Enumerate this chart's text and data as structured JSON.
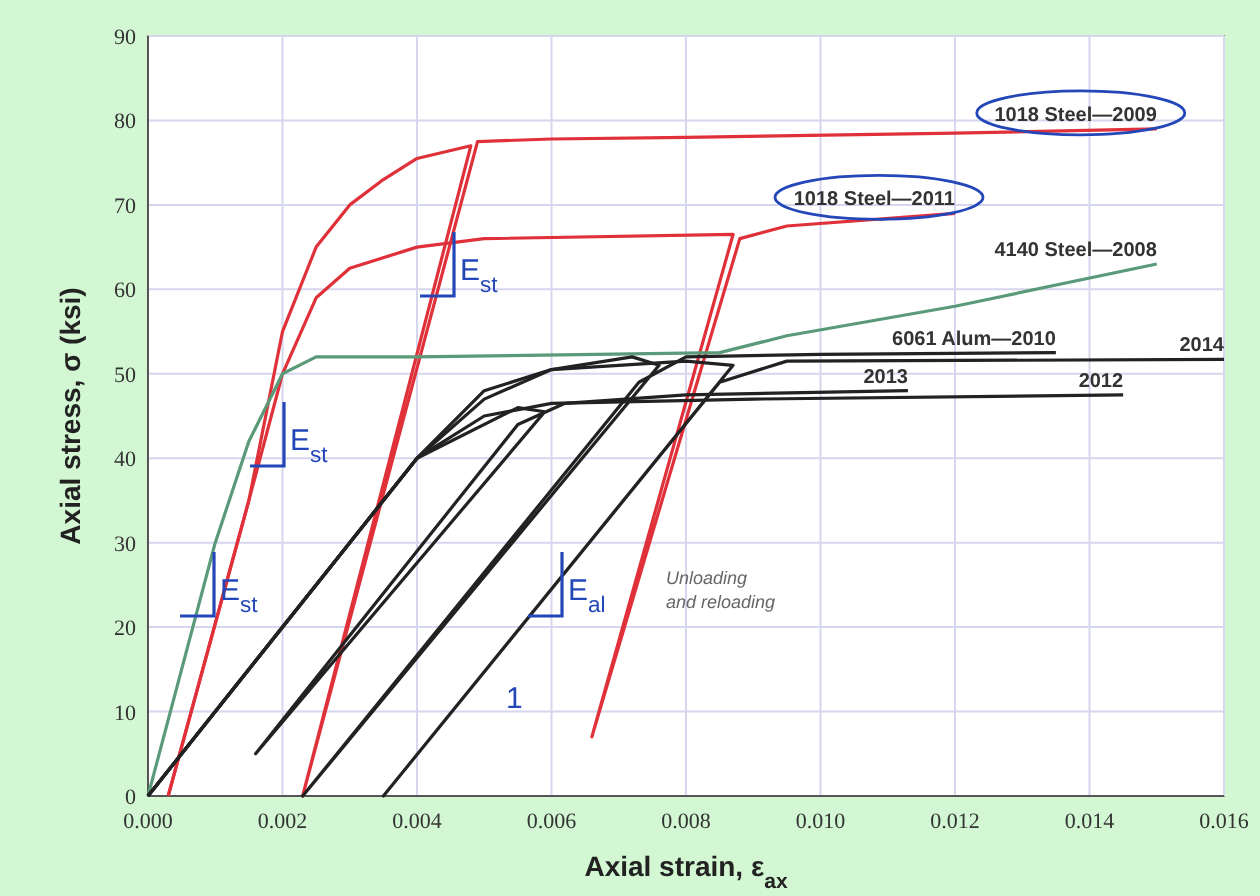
{
  "chart_data": {
    "type": "line",
    "xlabel": "Axial strain, ε$_{ax}$",
    "ylabel": "Axial stress, σ (ksi)",
    "xlim": [
      0,
      0.016
    ],
    "ylim": [
      0,
      90
    ],
    "xticks": [
      {
        "value": 0,
        "label": "0.000"
      },
      {
        "value": 0.002,
        "label": "0.002"
      },
      {
        "value": 0.004,
        "label": "0.004"
      },
      {
        "value": 0.006,
        "label": "0.006"
      },
      {
        "value": 0.008,
        "label": "0.008"
      },
      {
        "value": 0.01,
        "label": "0.010"
      },
      {
        "value": 0.012,
        "label": "0.012"
      },
      {
        "value": 0.014,
        "label": "0.014"
      },
      {
        "value": 0.016,
        "label": "0.016"
      }
    ],
    "yticks": [
      0,
      10,
      20,
      30,
      40,
      50,
      60,
      70,
      80,
      90
    ],
    "grid": true,
    "legend": false,
    "marker": "none",
    "line_style": "solid",
    "series": [
      {
        "name": "1018 Steel—2009",
        "color": "#e0303a",
        "x": [
          0.0003,
          0.0015,
          0.002,
          0.0025,
          0.003,
          0.0035,
          0.004,
          0.0048,
          0.0023,
          0.0049,
          0.006,
          0.008,
          0.012,
          0.015
        ],
        "values": [
          0,
          35,
          55,
          65,
          70,
          73,
          75.5,
          77,
          0,
          77.5,
          77.8,
          78,
          78.5,
          79
        ]
      },
      {
        "name": "1018 Steel—2011",
        "color": "#e0303a",
        "x": [
          0.0003,
          0.0015,
          0.002,
          0.0025,
          0.003,
          0.004,
          0.005,
          0.0087,
          0.0066,
          0.0088,
          0.0095,
          0.012
        ],
        "values": [
          0,
          35,
          50,
          59,
          62.5,
          65,
          66,
          66.5,
          7,
          66,
          67.5,
          69
        ]
      },
      {
        "name": "4140 Steel—2008",
        "color": "#5a9a78",
        "x": [
          0,
          0.0005,
          0.001,
          0.0015,
          0.002,
          0.0025,
          0.004,
          0.0085,
          0.0095,
          0.012,
          0.015
        ],
        "values": [
          0,
          15,
          30,
          42,
          50,
          52,
          52,
          52.5,
          54.5,
          58,
          63
        ]
      },
      {
        "name": "6061 Alum—2010",
        "color": "#222222",
        "x": [
          0,
          0.003,
          0.004,
          0.005,
          0.006,
          0.0072,
          0.0076,
          0.0023,
          0.0073,
          0.008,
          0.01,
          0.0135
        ],
        "values": [
          0,
          30,
          40,
          47,
          50.5,
          52,
          51,
          0,
          49,
          52,
          52.3,
          52.5
        ]
      },
      {
        "name": "2014",
        "color": "#222222",
        "x": [
          0,
          0.003,
          0.004,
          0.005,
          0.006,
          0.008,
          0.0087,
          0.0035,
          0.0085,
          0.0095,
          0.016
        ],
        "values": [
          0,
          30,
          40,
          48,
          50.5,
          51.5,
          51,
          0,
          49,
          51.5,
          51.7
        ]
      },
      {
        "name": "2013",
        "color": "#222222",
        "x": [
          0,
          0.003,
          0.004,
          0.0055,
          0.0059,
          0.0016,
          0.0055,
          0.0062,
          0.008,
          0.0113
        ],
        "values": [
          0,
          30,
          40,
          46,
          45.5,
          5,
          44,
          46.5,
          47.5,
          48
        ]
      },
      {
        "name": "2012",
        "color": "#222222",
        "x": [
          0,
          0.003,
          0.004,
          0.005,
          0.006,
          0.009,
          0.0145
        ],
        "values": [
          0,
          30,
          40,
          45,
          46.5,
          47,
          47.5
        ]
      }
    ],
    "annotations": [
      "E$_{st}$",
      "E$_{st}$",
      "E$_{st}$",
      "E$_{al}$",
      "1",
      "Unloading\nand reloading"
    ]
  }
}
